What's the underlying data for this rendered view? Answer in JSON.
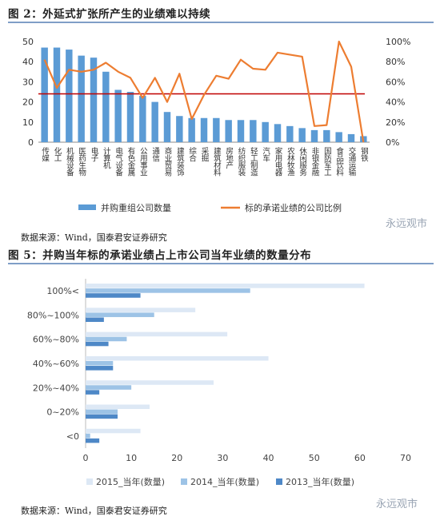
{
  "figure1": {
    "title": "图 2：外延式扩张所产生的业绩难以持续",
    "source": "数据来源：Wind，国泰君安证券研究",
    "watermark": "永远观市",
    "chart_data": {
      "type": "bar",
      "categories": [
        "传媒",
        "化工",
        "机械设备",
        "医药生物",
        "电子",
        "计算机",
        "电气设备",
        "有色金属",
        "公用事业",
        "通信",
        "商业贸易",
        "建筑装饰",
        "综合",
        "采掘",
        "建筑材料",
        "房地产",
        "纺织服装",
        "轻工制造",
        "汽车",
        "家用电器",
        "农林牧渔",
        "休闲服务",
        "非银金融",
        "国防军工",
        "食品饮料",
        "交通运输",
        "钢铁"
      ],
      "series": [
        {
          "name": "并购重组公司数量",
          "axis": "left",
          "type": "bar",
          "color": "#5b9bd5",
          "values": [
            47,
            47,
            46,
            43,
            42,
            35,
            26,
            25,
            23,
            20,
            15,
            13,
            12,
            12,
            12,
            11,
            11,
            11,
            10,
            9,
            8,
            7,
            6,
            6,
            5,
            4,
            3
          ]
        },
        {
          "name": "标的承诺业绩的公司比例",
          "axis": "right",
          "type": "line",
          "color": "#ed7d31",
          "values": [
            82,
            54,
            72,
            70,
            72,
            79,
            70,
            64,
            44,
            64,
            40,
            68,
            23,
            47,
            66,
            63,
            82,
            73,
            72,
            89,
            87,
            85,
            16,
            17,
            100,
            75,
            0
          ]
        }
      ],
      "reference_line": {
        "axis": "left",
        "value": 24,
        "color": "#c00000"
      },
      "ylim_left": [
        0,
        50
      ],
      "yticks_left": [
        0,
        10,
        20,
        30,
        40,
        50
      ],
      "ylim_right": [
        0,
        100
      ],
      "yticks_right": [
        "0%",
        "20%",
        "40%",
        "60%",
        "80%",
        "100%"
      ]
    }
  },
  "figure2": {
    "title": "图 5：并购当年标的承诺业绩占上市公司当年业绩的数量分布",
    "source": "数据来源：Wind，国泰君安证券研究",
    "watermark": "永远观市",
    "chart_data": {
      "type": "bar",
      "orientation": "horizontal",
      "categories": [
        "100%<",
        "80%~100%",
        "60%~80%",
        "40%~60%",
        "20%~40%",
        "0~20%",
        "<0"
      ],
      "series": [
        {
          "name": "2015_当年(数量)",
          "color": "#dde8f5",
          "values": [
            61,
            24,
            31,
            40,
            28,
            14,
            12
          ]
        },
        {
          "name": "2014_当年(数量)",
          "color": "#9dc3e6",
          "values": [
            36,
            15,
            9,
            6,
            10,
            7,
            1
          ]
        },
        {
          "name": "2013_当年(数量)",
          "color": "#4e88c7",
          "values": [
            12,
            4,
            5,
            6,
            3,
            7,
            3
          ]
        }
      ],
      "xlim": [
        0,
        70
      ],
      "xticks": [
        0,
        10,
        20,
        30,
        40,
        50,
        60,
        70
      ]
    }
  }
}
